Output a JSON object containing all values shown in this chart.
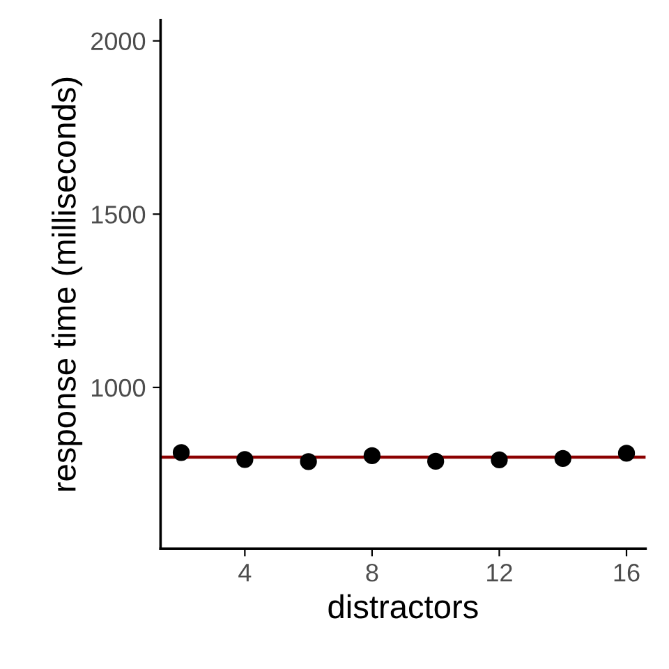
{
  "chart_data": {
    "type": "scatter",
    "xlabel": "distractors",
    "ylabel": "response time (milliseconds)",
    "x": [
      2,
      4,
      6,
      8,
      10,
      12,
      14,
      16
    ],
    "series": [
      {
        "color": "#000000",
        "values": [
          812,
          792,
          786,
          803,
          787,
          791,
          795,
          810
        ]
      }
    ],
    "xlim": [
      1.35,
      16.6
    ],
    "ylim": [
      535,
      2060
    ],
    "xticks": [
      4,
      8,
      12,
      16
    ],
    "yticks": [
      1000,
      1500,
      2000
    ],
    "ref_lines": [
      {
        "axis": "y",
        "value": 799,
        "color": "#8b0000"
      }
    ],
    "marker": "circle",
    "grid": false,
    "legend": false
  }
}
